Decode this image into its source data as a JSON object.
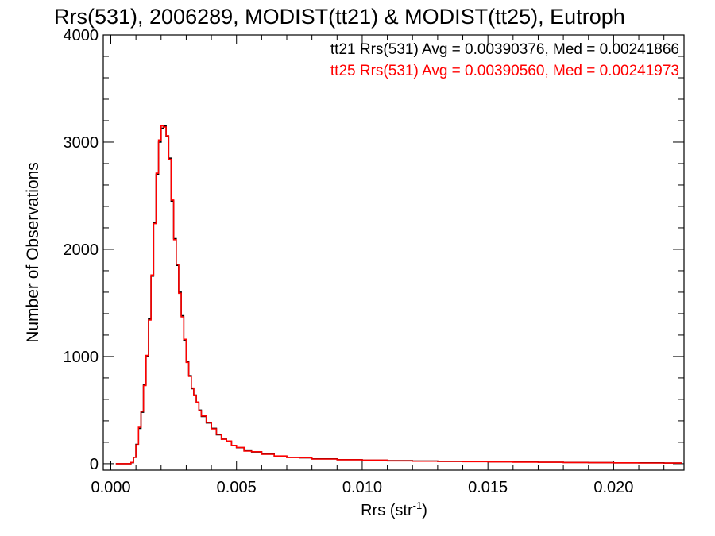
{
  "chart_data": {
    "type": "line",
    "title": "Rrs(531), 2006289, MODIST(tt21) & MODIST(tt25), Eutroph",
    "xlabel": "Rrs (str",
    "xlabel_superscript": "-1",
    "xlabel_suffix": ")",
    "ylabel": "Number of Observations",
    "xlim": [
      -0.0003,
      0.0228
    ],
    "ylim": [
      -60,
      4000
    ],
    "x_ticks": [
      0.0,
      0.005,
      0.01,
      0.015,
      0.02
    ],
    "x_tick_labels": [
      "0.000",
      "0.005",
      "0.010",
      "0.015",
      "0.020"
    ],
    "y_ticks": [
      0,
      1000,
      2000,
      3000,
      4000
    ],
    "y_tick_labels": [
      "0",
      "1000",
      "2000",
      "3000",
      "4000"
    ],
    "legend_position": "top-right",
    "series": [
      {
        "name": "tt21",
        "legend": "tt21 Rrs(531) Avg = 0.00390376, Med = 0.00241866",
        "color": "#000000",
        "x": [
          0.0002,
          0.0004,
          0.0006,
          0.0008,
          0.0009,
          0.001,
          0.0011,
          0.0012,
          0.0013,
          0.0014,
          0.0015,
          0.0016,
          0.0017,
          0.0018,
          0.0019,
          0.002,
          0.0021,
          0.0022,
          0.0023,
          0.0024,
          0.0025,
          0.0026,
          0.0027,
          0.0028,
          0.0029,
          0.003,
          0.0031,
          0.0032,
          0.0033,
          0.0034,
          0.0035,
          0.0036,
          0.0038,
          0.004,
          0.0042,
          0.0044,
          0.0046,
          0.0048,
          0.005,
          0.0053,
          0.0056,
          0.006,
          0.0065,
          0.007,
          0.0075,
          0.008,
          0.009,
          0.01,
          0.011,
          0.012,
          0.013,
          0.014,
          0.015,
          0.016,
          0.017,
          0.018,
          0.019,
          0.02,
          0.021,
          0.022,
          0.0227
        ],
        "y": [
          0,
          0,
          0,
          10,
          60,
          180,
          330,
          480,
          740,
          1000,
          1350,
          1750,
          2250,
          2700,
          3000,
          3130,
          3150,
          3050,
          2850,
          2450,
          2100,
          1850,
          1600,
          1380,
          1150,
          950,
          820,
          700,
          640,
          570,
          500,
          440,
          380,
          330,
          270,
          230,
          210,
          170,
          150,
          120,
          110,
          90,
          70,
          60,
          55,
          45,
          38,
          32,
          28,
          25,
          22,
          20,
          18,
          16,
          14,
          12,
          10,
          8,
          8,
          6,
          5
        ]
      },
      {
        "name": "tt25",
        "legend": "tt25 Rrs(531) Avg = 0.00390560, Med = 0.00241973",
        "color": "#ff0000",
        "x": [
          0.0002,
          0.0004,
          0.0006,
          0.0008,
          0.0009,
          0.001,
          0.0011,
          0.0012,
          0.0013,
          0.0014,
          0.0015,
          0.0016,
          0.0017,
          0.0018,
          0.0019,
          0.002,
          0.0021,
          0.0022,
          0.0023,
          0.0024,
          0.0025,
          0.0026,
          0.0027,
          0.0028,
          0.0029,
          0.003,
          0.0031,
          0.0032,
          0.0033,
          0.0034,
          0.0035,
          0.0036,
          0.0038,
          0.004,
          0.0042,
          0.0044,
          0.0046,
          0.0048,
          0.005,
          0.0053,
          0.0056,
          0.006,
          0.0065,
          0.007,
          0.0075,
          0.008,
          0.009,
          0.01,
          0.011,
          0.012,
          0.013,
          0.014,
          0.015,
          0.016,
          0.017,
          0.018,
          0.019,
          0.02,
          0.021,
          0.022,
          0.0227
        ],
        "y": [
          0,
          0,
          0,
          12,
          60,
          175,
          340,
          490,
          730,
          1010,
          1340,
          1760,
          2240,
          2710,
          3020,
          3150,
          3140,
          3060,
          2840,
          2460,
          2090,
          1860,
          1590,
          1370,
          1160,
          945,
          815,
          705,
          635,
          575,
          495,
          445,
          385,
          325,
          275,
          228,
          212,
          168,
          152,
          118,
          112,
          88,
          72,
          58,
          56,
          44,
          37,
          33,
          27,
          24,
          22,
          19,
          17,
          15,
          13,
          11,
          10,
          8,
          7,
          6,
          5
        ]
      }
    ]
  }
}
